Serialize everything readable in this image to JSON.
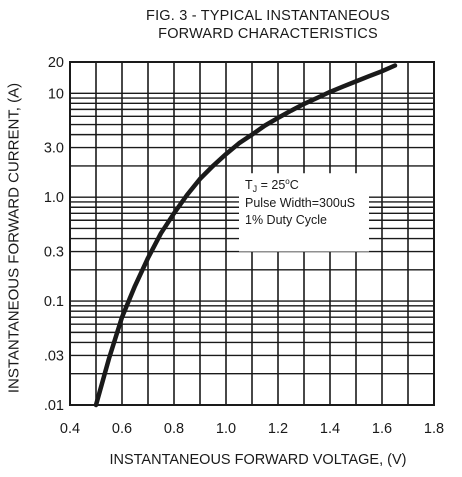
{
  "chart_data": {
    "type": "line",
    "title": [
      "FIG. 3 - TYPICAL INSTANTANEOUS",
      "FORWARD CHARACTERISTICS"
    ],
    "xlabel": "INSTANTANEOUS FORWARD VOLTAGE, (V)",
    "ylabel": "INSTANTANEOUS FORWARD CURRENT, (A)",
    "xlim": [
      0.4,
      1.8
    ],
    "ylim": [
      0.01,
      20
    ],
    "yscale": "log",
    "grid": true,
    "x_ticks": [
      0.4,
      0.6,
      0.8,
      1.0,
      1.2,
      1.4,
      1.6,
      1.8
    ],
    "x_tick_labels": [
      "0.4",
      "0.6",
      "0.8",
      "1.0",
      "1.2",
      "1.4",
      "1.6",
      "1.8"
    ],
    "y_ticks": [
      20,
      10,
      3.0,
      1.0,
      0.3,
      0.1,
      0.03,
      0.01
    ],
    "y_tick_labels": [
      "20",
      "10",
      "3.0",
      "1.0",
      "0.3",
      "0.1",
      ".03",
      ".01"
    ],
    "annotation": {
      "lines": [
        "Pulse Width=300uS",
        "1% Duty Cycle"
      ],
      "tj_symbol": "T",
      "tj_sub": "J",
      "tj_value": " = 25",
      "tj_sup": "o",
      "tj_unit": "C"
    },
    "series": [
      {
        "x": [
          0.5,
          0.55,
          0.6,
          0.65,
          0.7,
          0.75,
          0.8,
          0.85,
          0.9,
          0.95,
          1.0,
          1.05,
          1.1,
          1.15,
          1.2,
          1.25,
          1.3,
          1.35,
          1.4,
          1.45,
          1.5,
          1.55,
          1.6,
          1.65
        ],
        "y": [
          0.01,
          0.028,
          0.07,
          0.14,
          0.26,
          0.45,
          0.7,
          1.05,
          1.5,
          2.0,
          2.6,
          3.3,
          4.0,
          4.9,
          5.8,
          6.8,
          7.9,
          9.0,
          10.3,
          11.6,
          13.0,
          14.6,
          16.3,
          18.5
        ]
      }
    ]
  }
}
